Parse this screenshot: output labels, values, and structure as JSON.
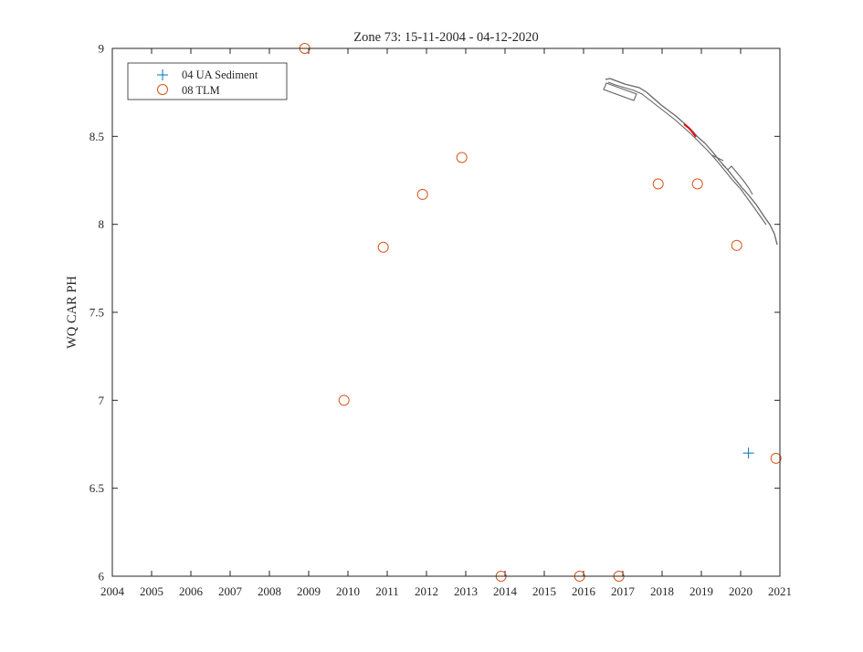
{
  "chart_data": {
    "type": "scatter",
    "title": "Zone 73: 15-11-2004 - 04-12-2020",
    "xlabel": "",
    "ylabel": "WQ CAR PH",
    "xlim": [
      2004,
      2021
    ],
    "ylim": [
      6,
      9
    ],
    "x_ticks": [
      "2004",
      "2005",
      "2006",
      "2007",
      "2008",
      "2009",
      "2010",
      "2011",
      "2012",
      "2013",
      "2014",
      "2015",
      "2016",
      "2017",
      "2018",
      "2019",
      "2020",
      "2021"
    ],
    "y_ticks": [
      "6",
      "6.5",
      "7",
      "7.5",
      "8",
      "8.5",
      "9"
    ],
    "grid": false,
    "legend_position": "top-left",
    "series": [
      {
        "name": "04 UA Sediment",
        "marker": "plus",
        "color": "#0072BD",
        "points": [
          {
            "x": 2020.2,
            "y": 6.7
          }
        ]
      },
      {
        "name": "08 TLM",
        "marker": "circle",
        "color": "#D95319",
        "points": [
          {
            "x": 2008.9,
            "y": 9.0
          },
          {
            "x": 2009.9,
            "y": 7.0
          },
          {
            "x": 2010.9,
            "y": 7.87
          },
          {
            "x": 2011.9,
            "y": 8.17
          },
          {
            "x": 2012.9,
            "y": 8.38
          },
          {
            "x": 2013.9,
            "y": 6.0
          },
          {
            "x": 2015.9,
            "y": 6.0
          },
          {
            "x": 2016.9,
            "y": 6.0
          },
          {
            "x": 2017.9,
            "y": 8.23
          },
          {
            "x": 2018.9,
            "y": 8.23
          },
          {
            "x": 2019.9,
            "y": 7.88
          },
          {
            "x": 2020.9,
            "y": 6.67
          }
        ]
      }
    ],
    "zone_map_inset": {
      "outline_color": "#666666",
      "highlight_color": "#FF0000"
    }
  }
}
